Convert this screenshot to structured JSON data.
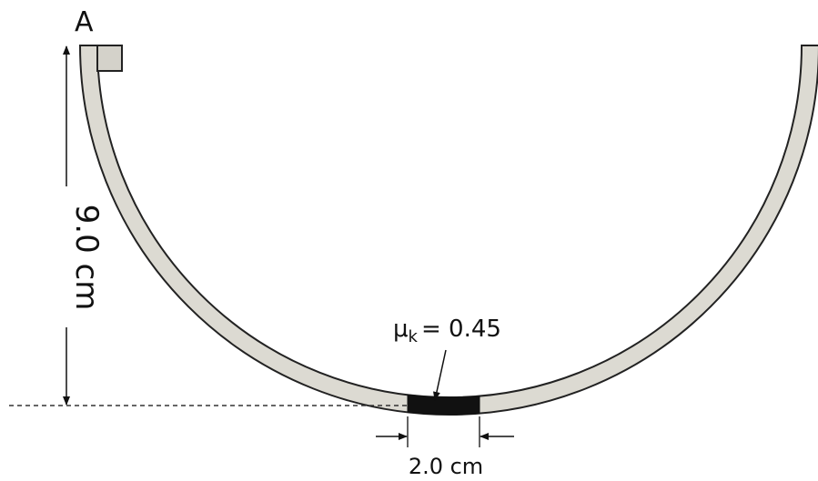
{
  "labels": {
    "point": "A",
    "height": "9.0 cm",
    "friction": {
      "symbol": "μ",
      "subscript": "k",
      "value": "= 0.45"
    },
    "patch_width": "2.0 cm"
  }
}
